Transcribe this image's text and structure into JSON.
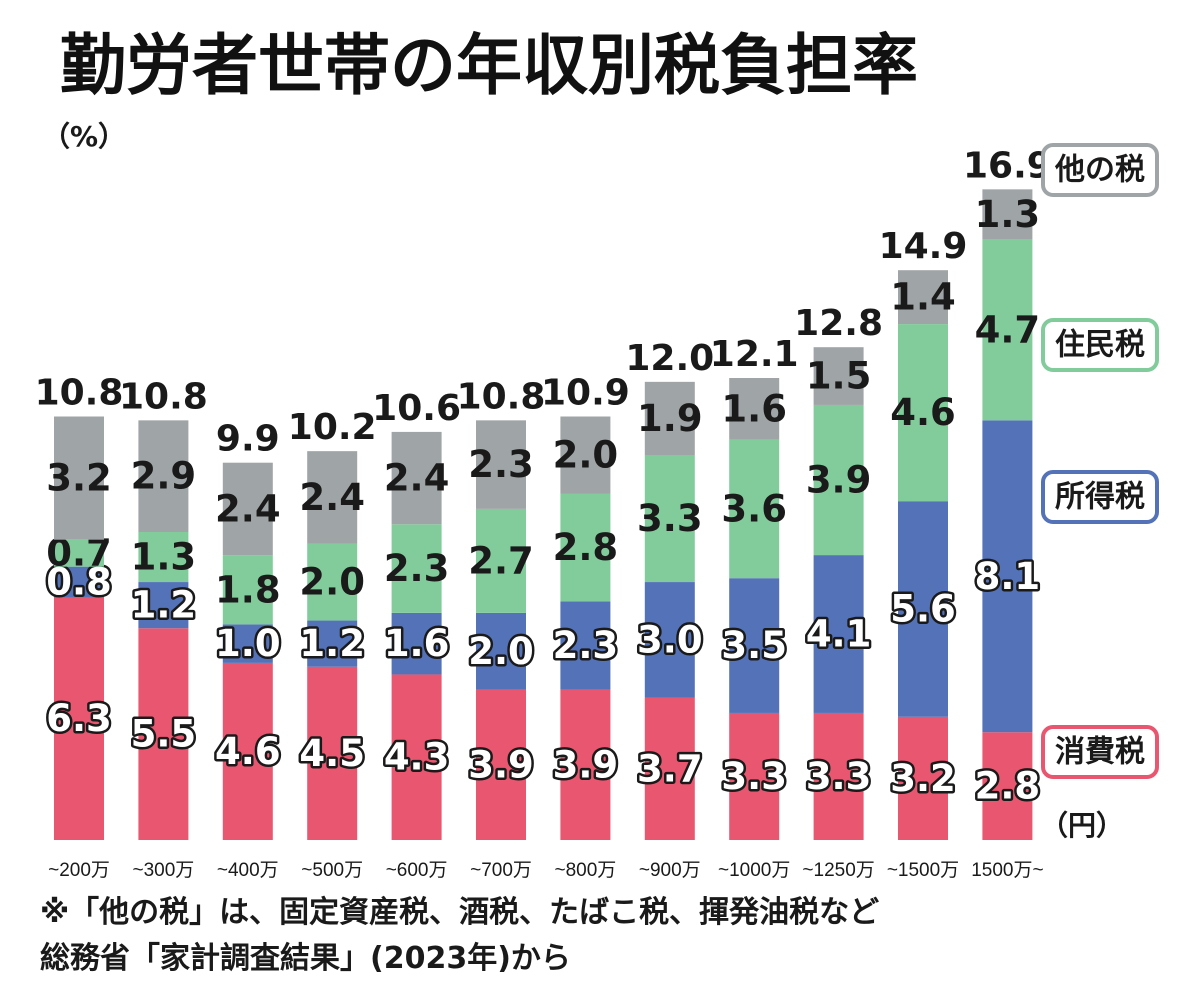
{
  "colors": {
    "consumption": "#e8566f",
    "income": "#5472b8",
    "resident": "#82cc9c",
    "other": "#9fa5a6"
  },
  "chart_data": {
    "type": "bar",
    "stacked": true,
    "title": "勤労者世帯の年収別税負担率",
    "ylabel": "（%）",
    "x_unit": "（円）",
    "ylim": [
      0,
      17
    ],
    "categories": [
      "~200万",
      "~300万",
      "~400万",
      "~500万",
      "~600万",
      "~700万",
      "~800万",
      "~900万",
      "~1000万",
      "~1250万",
      "~1500万",
      "1500万~"
    ],
    "series": [
      {
        "name": "消費税",
        "key": "consumption",
        "values": [
          6.3,
          5.5,
          4.6,
          4.5,
          4.3,
          3.9,
          3.9,
          3.7,
          3.3,
          3.3,
          3.2,
          2.8
        ]
      },
      {
        "name": "所得税",
        "key": "income",
        "values": [
          0.8,
          1.2,
          1.0,
          1.2,
          1.6,
          2.0,
          2.3,
          3.0,
          3.5,
          4.1,
          5.6,
          8.1
        ]
      },
      {
        "name": "住民税",
        "key": "resident",
        "values": [
          0.7,
          1.3,
          1.8,
          2.0,
          2.3,
          2.7,
          2.8,
          3.3,
          3.6,
          3.9,
          4.6,
          4.7
        ]
      },
      {
        "name": "他の税",
        "key": "other",
        "values": [
          3.2,
          2.9,
          2.4,
          2.4,
          2.4,
          2.3,
          2.0,
          1.9,
          1.6,
          1.5,
          1.4,
          1.3
        ]
      }
    ],
    "totals": [
      "10.8",
      "10.8",
      "9.9",
      "10.2",
      "10.6",
      "10.8",
      "10.9",
      "12.0",
      "12.1",
      "12.8",
      "14.9",
      "16.9"
    ],
    "value_labels": [
      [
        "6.3",
        "5.5",
        "4.6",
        "4.5",
        "4.3",
        "3.9",
        "3.9",
        "3.7",
        "3.3",
        "3.3",
        "3.2",
        "2.8"
      ],
      [
        "0.8",
        "1.2",
        "1.0",
        "1.2",
        "1.6",
        "2.0",
        "2.3",
        "3.0",
        "3.5",
        "4.1",
        "5.6",
        "8.1"
      ],
      [
        "0.7",
        "1.3",
        "1.8",
        "2.0",
        "2.3",
        "2.7",
        "2.8",
        "3.3",
        "3.6",
        "3.9",
        "4.6",
        "4.7"
      ],
      [
        "3.2",
        "2.9",
        "2.4",
        "2.4",
        "2.4",
        "2.3",
        "2.0",
        "1.9",
        "1.6",
        "1.5",
        "1.4",
        "1.3"
      ]
    ],
    "legend": [
      "他の税",
      "住民税",
      "所得税",
      "消費税"
    ],
    "grid": false
  },
  "notes": [
    "※「他の税」は、固定資産税、酒税、たばこ税、揮発油税など",
    "総務省「家計調査結果」(2023年)から"
  ]
}
